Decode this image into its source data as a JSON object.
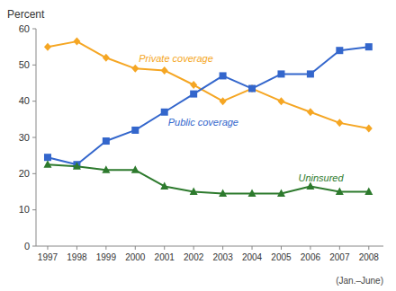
{
  "chart_data": {
    "type": "line",
    "y_label": "Percent",
    "annotation": "(Jan.–June)",
    "x": [
      1997,
      1998,
      1999,
      2000,
      2001,
      2002,
      2003,
      2004,
      2005,
      2006,
      2007,
      2008
    ],
    "series": [
      {
        "name": "Private coverage",
        "color": "#f5a623",
        "marker": "diamond",
        "values": [
          55,
          56.5,
          52,
          49,
          48.5,
          44.5,
          40,
          43.5,
          40,
          37,
          34,
          32.5
        ]
      },
      {
        "name": "Public coverage",
        "color": "#3366cc",
        "marker": "square",
        "values": [
          24.5,
          22.5,
          29,
          32,
          37,
          42,
          47,
          43.5,
          47.5,
          47.5,
          54,
          55
        ]
      },
      {
        "name": "Uninsured",
        "color": "#2d7a2d",
        "marker": "triangle",
        "values": [
          22.5,
          22,
          21,
          21,
          16.5,
          15,
          14.5,
          14.5,
          14.5,
          16.5,
          15,
          15
        ]
      }
    ],
    "xlim": [
      1996.6,
      2008.5
    ],
    "xticks": [
      1997,
      1998,
      1999,
      2000,
      2001,
      2002,
      2003,
      2004,
      2005,
      2006,
      2007,
      2008
    ],
    "ylim": [
      0,
      60
    ],
    "yticks": [
      0,
      10,
      20,
      30,
      40,
      50,
      60
    ],
    "grid": false
  }
}
